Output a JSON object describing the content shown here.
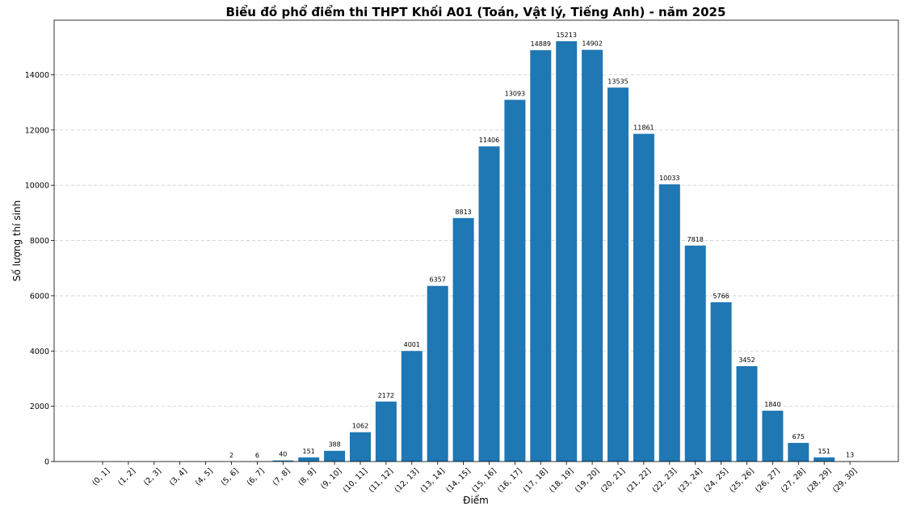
{
  "chart_data": {
    "type": "bar",
    "title": "Biểu đồ phổ điểm thi THPT Khối A01 (Toán, Vật lý, Tiếng Anh) - năm 2025",
    "xlabel": "Điểm",
    "ylabel": "Số lượng thí sinh",
    "categories": [
      "(0, 1]",
      "(1, 2]",
      "(2, 3]",
      "(3, 4]",
      "(4, 5]",
      "(5, 6]",
      "(6, 7]",
      "(7, 8]",
      "(8, 9]",
      "(9, 10]",
      "(10, 11]",
      "(11, 12]",
      "(12, 13]",
      "(13, 14]",
      "(14, 15]",
      "(15, 16]",
      "(16, 17]",
      "(17, 18]",
      "(18, 19]",
      "(19, 20]",
      "(20, 21]",
      "(21, 22]",
      "(22, 23]",
      "(23, 24]",
      "(24, 25]",
      "(25, 26]",
      "(26, 27]",
      "(27, 28]",
      "(28, 29]",
      "(29, 30]"
    ],
    "values": [
      0,
      0,
      0,
      0,
      0,
      2,
      6,
      40,
      151,
      388,
      1062,
      2172,
      4001,
      6357,
      8813,
      11406,
      13093,
      14889,
      15213,
      14902,
      13535,
      11861,
      10033,
      7818,
      5766,
      3452,
      1840,
      675,
      151,
      13
    ],
    "data_labels": [
      "",
      "",
      "",
      "",
      "",
      "2",
      "6",
      "40",
      "151",
      "388",
      "1062",
      "2172",
      "4001",
      "6357",
      "8813",
      "11406",
      "13093",
      "14889",
      "15213",
      "14902",
      "13535",
      "11861",
      "10033",
      "7818",
      "5766",
      "3452",
      "1840",
      "675",
      "151",
      "13"
    ],
    "yticks": [
      0,
      2000,
      4000,
      6000,
      8000,
      10000,
      12000,
      14000
    ],
    "ylim": [
      0,
      15974
    ],
    "grid": "y-dashed",
    "bar_color": "#1f77b4"
  }
}
